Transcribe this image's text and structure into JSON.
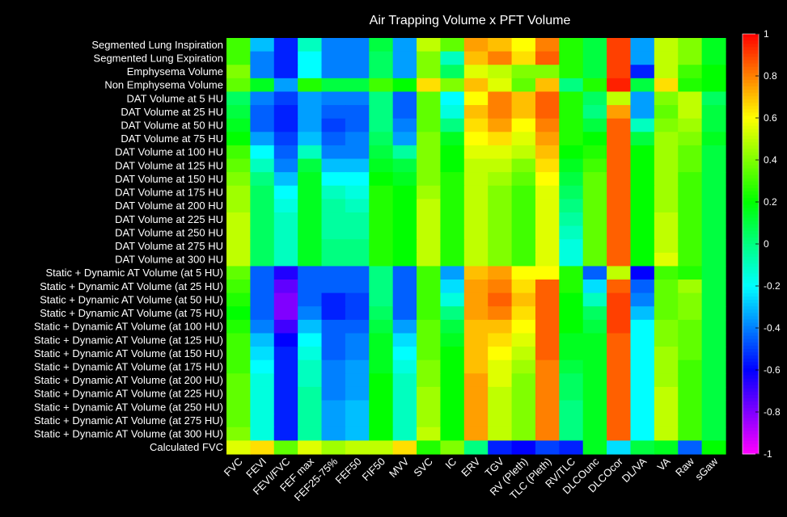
{
  "chart_data": {
    "type": "heatmap",
    "title": "Air Trapping Volume x PFT Volume",
    "rows": [
      "Segmented Lung Inspiration",
      "Segmented Lung Expiration",
      "Emphysema Volume",
      "Non Emphysema Volume",
      "DAT Volume at 5 HU",
      "DAT Volume at 25 HU",
      "DAT Volume at 50 HU",
      "DAT Volume at 75 HU",
      "DAT Volume at 100 HU",
      "DAT Volume at 125 HU",
      "DAT Volume at 150 HU",
      "DAT Volume at 175 HU",
      "DAT Volume at 200 HU",
      "DAT Volume at 225 HU",
      "DAT Volume at 250 HU",
      "DAT Volume at 275 HU",
      "DAT Volume at 300 HU",
      "Static + Dynamic AT Volume (at 5 HU)",
      "Static + Dynamic AT Volume (at 25 HU)",
      "Static + Dynamic AT Volume (at 50 HU)",
      "Static + Dynamic AT Volume (at 75 HU)",
      "Static + Dynamic AT Volume (at 100 HU)",
      "Static + Dynamic AT Volume (at 125 HU)",
      "Static + Dynamic AT Volume (at 150 HU)",
      "Static + Dynamic AT Volume (at 175 HU)",
      "Static + Dynamic AT Volume (at 200 HU)",
      "Static + Dynamic AT Volume (at 225 HU)",
      "Static + Dynamic AT Volume (at 250 HU)",
      "Static + Dynamic AT Volume (at 275 HU)",
      "Static + Dynamic AT Volume (at 300 HU)",
      "Calculated FVC"
    ],
    "columns": [
      "FVC",
      "FEVI",
      "FEVI/FVC",
      "FEF max",
      "FEF25-75%",
      "FEF50",
      "FIF50",
      "MVV",
      "SVC",
      "IC",
      "ERV",
      "TGV",
      "RV (Pleth)",
      "TLC (Pleth)",
      "RV/TLC",
      "DLCOunc",
      "DLCOcor",
      "DL/VA",
      "VA",
      "Raw",
      "sGaw"
    ],
    "values": [
      [
        0.3,
        -0.3,
        -0.55,
        -0.1,
        -0.4,
        -0.4,
        0.1,
        -0.35,
        0.5,
        0.35,
        0.75,
        0.7,
        0.6,
        0.8,
        0.25,
        0.1,
        0.9,
        -0.35,
        0.5,
        0.4,
        0.15
      ],
      [
        0.3,
        -0.4,
        -0.55,
        -0.2,
        -0.4,
        -0.4,
        0.05,
        -0.35,
        0.4,
        -0.1,
        0.7,
        0.8,
        0.65,
        0.85,
        0.25,
        0.1,
        0.9,
        -0.35,
        0.5,
        0.4,
        0.15
      ],
      [
        0.4,
        -0.4,
        -0.55,
        -0.2,
        -0.4,
        -0.4,
        0.05,
        -0.35,
        0.4,
        0.05,
        0.55,
        0.5,
        0.4,
        0.4,
        0.25,
        0.1,
        0.9,
        -0.55,
        0.5,
        0.3,
        0.2
      ],
      [
        0.35,
        0.15,
        -0.35,
        0.25,
        0.1,
        0.1,
        0.3,
        0.2,
        0.65,
        0.4,
        0.7,
        0.55,
        0.35,
        0.7,
        0.0,
        0.25,
        0.95,
        0.1,
        0.65,
        0.25,
        0.2
      ],
      [
        0.05,
        -0.4,
        -0.5,
        -0.35,
        -0.4,
        -0.4,
        0.0,
        -0.45,
        0.35,
        -0.2,
        0.6,
        0.8,
        0.7,
        0.85,
        0.25,
        0.05,
        0.5,
        -0.35,
        0.4,
        0.5,
        0.05
      ],
      [
        0.1,
        -0.45,
        -0.55,
        -0.35,
        -0.45,
        -0.45,
        0.0,
        -0.45,
        0.35,
        -0.15,
        0.7,
        0.8,
        0.7,
        0.85,
        0.25,
        0.0,
        0.75,
        -0.35,
        0.35,
        0.5,
        0.1
      ],
      [
        0.15,
        -0.45,
        -0.55,
        -0.35,
        -0.5,
        -0.45,
        0.0,
        -0.4,
        0.35,
        0.0,
        0.65,
        0.75,
        0.6,
        0.8,
        0.25,
        0.1,
        0.85,
        -0.1,
        0.4,
        0.45,
        0.1
      ],
      [
        0.2,
        -0.35,
        -0.5,
        -0.3,
        -0.45,
        -0.4,
        0.05,
        -0.35,
        0.4,
        0.15,
        0.6,
        0.65,
        0.55,
        0.75,
        0.25,
        0.2,
        0.85,
        0.1,
        0.45,
        0.4,
        0.15
      ],
      [
        0.3,
        -0.2,
        -0.45,
        -0.1,
        -0.4,
        -0.4,
        0.1,
        -0.05,
        0.4,
        0.2,
        0.55,
        0.55,
        0.5,
        0.7,
        0.2,
        0.25,
        0.85,
        0.2,
        0.45,
        0.35,
        0.1
      ],
      [
        0.35,
        -0.1,
        -0.4,
        0.1,
        -0.3,
        -0.3,
        0.15,
        0.1,
        0.4,
        0.2,
        0.5,
        0.5,
        0.4,
        0.65,
        0.15,
        0.3,
        0.85,
        0.2,
        0.45,
        0.35,
        0.1
      ],
      [
        0.4,
        0.0,
        -0.3,
        0.15,
        -0.2,
        -0.2,
        0.2,
        0.15,
        0.4,
        0.25,
        0.5,
        0.45,
        0.35,
        0.6,
        0.1,
        0.35,
        0.85,
        0.2,
        0.45,
        0.3,
        0.1
      ],
      [
        0.45,
        0.05,
        -0.2,
        0.15,
        -0.1,
        -0.15,
        0.25,
        0.2,
        0.45,
        0.25,
        0.5,
        0.4,
        0.3,
        0.55,
        0.05,
        0.35,
        0.85,
        0.2,
        0.45,
        0.3,
        0.1
      ],
      [
        0.45,
        0.05,
        -0.15,
        0.15,
        -0.05,
        -0.1,
        0.25,
        0.2,
        0.5,
        0.25,
        0.5,
        0.4,
        0.3,
        0.55,
        0.0,
        0.35,
        0.85,
        0.2,
        0.45,
        0.3,
        0.1
      ],
      [
        0.5,
        0.05,
        -0.1,
        0.15,
        -0.05,
        -0.05,
        0.25,
        0.2,
        0.5,
        0.25,
        0.5,
        0.4,
        0.3,
        0.55,
        -0.05,
        0.35,
        0.85,
        0.2,
        0.5,
        0.3,
        0.1
      ],
      [
        0.5,
        0.05,
        -0.1,
        0.15,
        -0.05,
        -0.05,
        0.25,
        0.2,
        0.5,
        0.25,
        0.5,
        0.4,
        0.3,
        0.55,
        -0.1,
        0.35,
        0.85,
        0.2,
        0.5,
        0.3,
        0.1
      ],
      [
        0.5,
        0.05,
        -0.1,
        0.15,
        0.0,
        0.0,
        0.25,
        0.2,
        0.5,
        0.25,
        0.5,
        0.4,
        0.3,
        0.55,
        -0.15,
        0.35,
        0.85,
        0.2,
        0.5,
        0.3,
        0.1
      ],
      [
        0.5,
        0.05,
        -0.1,
        0.15,
        0.0,
        0.0,
        0.25,
        0.2,
        0.5,
        0.25,
        0.5,
        0.4,
        0.3,
        0.55,
        -0.15,
        0.35,
        0.85,
        0.2,
        0.55,
        0.3,
        0.1
      ],
      [
        0.35,
        -0.45,
        -0.65,
        -0.45,
        -0.45,
        -0.45,
        0.0,
        -0.45,
        0.3,
        -0.35,
        0.7,
        0.75,
        0.6,
        0.6,
        0.25,
        -0.45,
        0.5,
        -0.6,
        0.3,
        0.25,
        0.1
      ],
      [
        0.3,
        -0.45,
        -0.75,
        -0.45,
        -0.45,
        -0.45,
        0.0,
        -0.45,
        0.3,
        -0.25,
        0.75,
        0.8,
        0.65,
        0.85,
        0.25,
        -0.25,
        0.85,
        -0.45,
        0.35,
        0.45,
        0.1
      ],
      [
        0.25,
        -0.45,
        -0.8,
        -0.45,
        -0.55,
        -0.5,
        0.0,
        -0.45,
        0.3,
        -0.15,
        0.75,
        0.85,
        0.7,
        0.85,
        0.2,
        -0.1,
        0.9,
        -0.4,
        0.35,
        0.4,
        0.1
      ],
      [
        0.2,
        -0.45,
        -0.8,
        -0.4,
        -0.55,
        -0.5,
        0.05,
        -0.45,
        0.3,
        0.0,
        0.75,
        0.8,
        0.65,
        0.85,
        0.2,
        0.05,
        0.9,
        -0.3,
        0.35,
        0.4,
        0.1
      ],
      [
        0.25,
        -0.4,
        -0.7,
        -0.3,
        -0.45,
        -0.45,
        0.1,
        -0.35,
        0.35,
        0.1,
        0.7,
        0.7,
        0.6,
        0.85,
        0.2,
        0.1,
        0.9,
        -0.2,
        0.4,
        0.35,
        0.1
      ],
      [
        0.3,
        -0.3,
        -0.6,
        -0.2,
        -0.45,
        -0.4,
        0.15,
        -0.25,
        0.35,
        0.15,
        0.7,
        0.65,
        0.55,
        0.85,
        0.15,
        0.15,
        0.85,
        -0.2,
        0.4,
        0.35,
        0.1
      ],
      [
        0.3,
        -0.25,
        -0.55,
        -0.15,
        -0.45,
        -0.4,
        0.15,
        -0.2,
        0.35,
        0.2,
        0.7,
        0.6,
        0.5,
        0.85,
        0.15,
        0.15,
        0.85,
        -0.2,
        0.45,
        0.35,
        0.1
      ],
      [
        0.3,
        -0.2,
        -0.55,
        -0.1,
        -0.4,
        -0.35,
        0.15,
        -0.15,
        0.4,
        0.2,
        0.7,
        0.55,
        0.45,
        0.8,
        0.1,
        0.15,
        0.85,
        -0.2,
        0.45,
        0.3,
        0.1
      ],
      [
        0.35,
        -0.15,
        -0.55,
        -0.1,
        -0.4,
        -0.35,
        0.2,
        -0.1,
        0.4,
        0.2,
        0.75,
        0.55,
        0.4,
        0.8,
        0.05,
        0.15,
        0.85,
        -0.2,
        0.45,
        0.3,
        0.1
      ],
      [
        0.35,
        -0.15,
        -0.55,
        -0.05,
        -0.4,
        -0.35,
        0.2,
        -0.1,
        0.45,
        0.2,
        0.75,
        0.5,
        0.4,
        0.8,
        0.05,
        0.15,
        0.85,
        -0.2,
        0.5,
        0.3,
        0.1
      ],
      [
        0.35,
        -0.15,
        -0.55,
        -0.05,
        -0.35,
        -0.3,
        0.2,
        -0.1,
        0.45,
        0.2,
        0.75,
        0.5,
        0.4,
        0.8,
        0.0,
        0.15,
        0.85,
        -0.2,
        0.5,
        0.3,
        0.1
      ],
      [
        0.35,
        -0.15,
        -0.55,
        -0.05,
        -0.35,
        -0.3,
        0.2,
        -0.1,
        0.45,
        0.2,
        0.75,
        0.5,
        0.4,
        0.8,
        0.0,
        0.15,
        0.85,
        -0.2,
        0.5,
        0.3,
        0.1
      ],
      [
        0.4,
        -0.15,
        -0.55,
        -0.05,
        -0.35,
        -0.3,
        0.2,
        -0.1,
        0.5,
        0.2,
        0.75,
        0.5,
        0.4,
        0.8,
        0.0,
        0.15,
        0.85,
        -0.2,
        0.5,
        0.3,
        0.1
      ],
      [
        0.55,
        0.65,
        0.35,
        0.55,
        0.45,
        0.5,
        0.5,
        0.65,
        0.25,
        0.4,
        0.0,
        -0.55,
        -0.6,
        -0.5,
        -0.55,
        0.15,
        -0.25,
        0.1,
        0.15,
        -0.45,
        0.2
      ]
    ],
    "colorbar": {
      "range": [
        -1,
        1
      ],
      "ticks": [
        "1",
        "0.8",
        "0.6",
        "0.4",
        "0.2",
        "0",
        "-0.2",
        "-0.4",
        "-0.6",
        "-0.8",
        "-1"
      ]
    },
    "colormap": "hsv"
  }
}
